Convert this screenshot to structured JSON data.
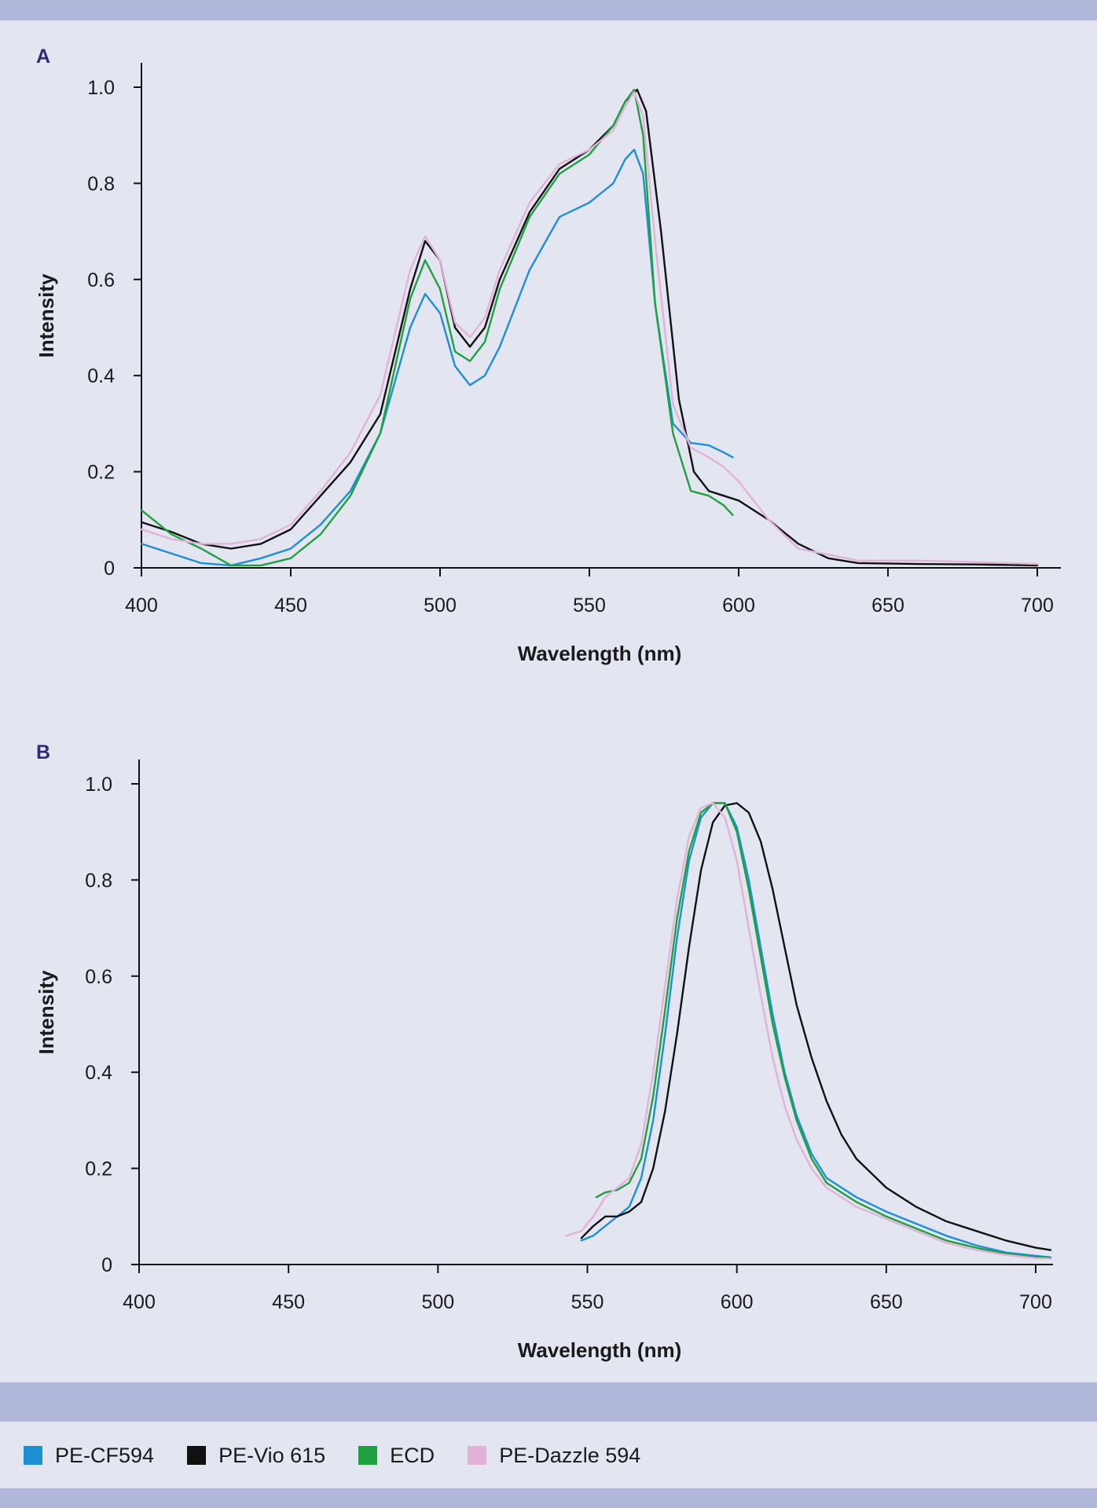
{
  "legend": [
    {
      "label": "PE-CF594",
      "color": "#1d8fd4"
    },
    {
      "label": "PE-Vio 615",
      "color": "#111111"
    },
    {
      "label": "ECD",
      "color": "#1ea13e"
    },
    {
      "label": "PE-Dazzle 594",
      "color": "#e2b3d8"
    }
  ],
  "chart_data": [
    {
      "panel_label": "A",
      "type": "line",
      "title": "",
      "xlabel": "Wavelength (nm)",
      "ylabel": "Intensity",
      "xlim": [
        400,
        705
      ],
      "ylim": [
        0,
        1.05
      ],
      "xticks": [
        400,
        450,
        500,
        550,
        600,
        650,
        700
      ],
      "yticks": [
        0,
        0.2,
        0.4,
        0.6,
        0.8,
        1.0
      ],
      "ytick_labels": [
        "0",
        "0.2",
        "0.4",
        "0.6",
        "0.8",
        "1.0"
      ],
      "grid": false,
      "series": [
        {
          "name": "PE-CF594",
          "color": "#1d8fd4",
          "x": [
            400,
            410,
            420,
            430,
            440,
            450,
            460,
            470,
            480,
            490,
            495,
            500,
            505,
            510,
            515,
            520,
            530,
            540,
            550,
            558,
            562,
            565,
            568,
            572,
            578,
            584,
            590,
            595,
            598
          ],
          "y": [
            0.05,
            0.03,
            0.01,
            0.005,
            0.02,
            0.04,
            0.09,
            0.16,
            0.28,
            0.5,
            0.57,
            0.53,
            0.42,
            0.38,
            0.4,
            0.46,
            0.62,
            0.73,
            0.76,
            0.8,
            0.85,
            0.87,
            0.82,
            0.55,
            0.3,
            0.26,
            0.255,
            0.24,
            0.23
          ]
        },
        {
          "name": "PE-Vio 615",
          "color": "#111111",
          "x": [
            400,
            410,
            420,
            430,
            440,
            450,
            460,
            470,
            480,
            490,
            495,
            500,
            505,
            510,
            515,
            520,
            530,
            540,
            550,
            558,
            562,
            566,
            569,
            574,
            580,
            585,
            590,
            595,
            600,
            610,
            620,
            630,
            640,
            660,
            680,
            700
          ],
          "y": [
            0.095,
            0.075,
            0.05,
            0.04,
            0.05,
            0.08,
            0.15,
            0.22,
            0.32,
            0.58,
            0.68,
            0.64,
            0.5,
            0.46,
            0.5,
            0.6,
            0.74,
            0.83,
            0.87,
            0.92,
            0.97,
            0.995,
            0.95,
            0.7,
            0.35,
            0.2,
            0.16,
            0.15,
            0.14,
            0.1,
            0.05,
            0.02,
            0.01,
            0.008,
            0.007,
            0.005
          ]
        },
        {
          "name": "ECD",
          "color": "#1ea13e",
          "x": [
            400,
            410,
            420,
            430,
            440,
            450,
            460,
            470,
            480,
            490,
            495,
            500,
            505,
            510,
            515,
            520,
            530,
            540,
            550,
            558,
            562,
            565,
            568,
            572,
            578,
            584,
            590,
            595,
            598
          ],
          "y": [
            0.12,
            0.07,
            0.04,
            0.005,
            0.005,
            0.02,
            0.07,
            0.15,
            0.28,
            0.56,
            0.64,
            0.58,
            0.45,
            0.43,
            0.47,
            0.58,
            0.73,
            0.82,
            0.86,
            0.92,
            0.97,
            0.995,
            0.9,
            0.55,
            0.28,
            0.16,
            0.15,
            0.13,
            0.11
          ]
        },
        {
          "name": "PE-Dazzle 594",
          "color": "#e2b3d8",
          "x": [
            400,
            410,
            420,
            430,
            440,
            450,
            460,
            470,
            480,
            490,
            495,
            500,
            505,
            510,
            515,
            520,
            530,
            540,
            550,
            558,
            562,
            565,
            568,
            572,
            578,
            584,
            590,
            595,
            600,
            610,
            620,
            640,
            660,
            680,
            700
          ],
          "y": [
            0.08,
            0.06,
            0.05,
            0.05,
            0.06,
            0.09,
            0.16,
            0.24,
            0.36,
            0.62,
            0.69,
            0.64,
            0.51,
            0.48,
            0.52,
            0.62,
            0.76,
            0.84,
            0.87,
            0.91,
            0.96,
            0.99,
            0.94,
            0.68,
            0.34,
            0.25,
            0.23,
            0.21,
            0.18,
            0.1,
            0.04,
            0.015,
            0.015,
            0.012,
            0.008
          ]
        }
      ]
    },
    {
      "panel_label": "B",
      "type": "line",
      "title": "",
      "xlabel": "Wavelength (nm)",
      "ylabel": "Intensity",
      "xlim": [
        400,
        705
      ],
      "ylim": [
        0,
        1.05
      ],
      "xticks": [
        400,
        450,
        500,
        550,
        600,
        650,
        700
      ],
      "yticks": [
        0,
        0.2,
        0.4,
        0.6,
        0.8,
        1.0
      ],
      "ytick_labels": [
        "0",
        "0.2",
        "0.4",
        "0.6",
        "0.8",
        "1.0"
      ],
      "grid": false,
      "series": [
        {
          "name": "PE-CF594",
          "color": "#1d8fd4",
          "x": [
            548,
            552,
            556,
            560,
            564,
            568,
            572,
            576,
            580,
            584,
            588,
            592,
            596,
            600,
            604,
            608,
            612,
            616,
            620,
            625,
            630,
            635,
            640,
            650,
            660,
            670,
            680,
            690,
            700,
            705
          ],
          "y": [
            0.05,
            0.06,
            0.08,
            0.1,
            0.12,
            0.18,
            0.3,
            0.48,
            0.68,
            0.84,
            0.93,
            0.96,
            0.96,
            0.91,
            0.8,
            0.66,
            0.52,
            0.4,
            0.31,
            0.23,
            0.18,
            0.16,
            0.14,
            0.11,
            0.085,
            0.06,
            0.04,
            0.025,
            0.018,
            0.015
          ]
        },
        {
          "name": "PE-Vio 615",
          "color": "#111111",
          "x": [
            548,
            552,
            556,
            560,
            564,
            568,
            572,
            576,
            580,
            584,
            588,
            592,
            596,
            600,
            604,
            608,
            612,
            616,
            620,
            625,
            630,
            635,
            640,
            650,
            660,
            670,
            680,
            690,
            700,
            705
          ],
          "y": [
            0.055,
            0.08,
            0.1,
            0.1,
            0.11,
            0.13,
            0.2,
            0.32,
            0.48,
            0.66,
            0.82,
            0.92,
            0.955,
            0.96,
            0.94,
            0.88,
            0.78,
            0.66,
            0.54,
            0.43,
            0.34,
            0.27,
            0.22,
            0.16,
            0.12,
            0.09,
            0.07,
            0.05,
            0.035,
            0.03
          ]
        },
        {
          "name": "ECD",
          "color": "#1ea13e",
          "x": [
            553,
            556,
            560,
            564,
            568,
            572,
            576,
            580,
            584,
            588,
            592,
            596,
            600,
            604,
            608,
            612,
            616,
            620,
            625,
            630,
            635,
            640,
            650,
            660,
            670,
            680,
            690,
            700,
            705
          ],
          "y": [
            0.14,
            0.15,
            0.155,
            0.17,
            0.22,
            0.35,
            0.53,
            0.72,
            0.86,
            0.94,
            0.96,
            0.96,
            0.9,
            0.78,
            0.64,
            0.5,
            0.39,
            0.3,
            0.22,
            0.17,
            0.15,
            0.13,
            0.1,
            0.075,
            0.05,
            0.035,
            0.022,
            0.015,
            0.013
          ]
        },
        {
          "name": "PE-Dazzle 594",
          "color": "#e2b3d8",
          "x": [
            543,
            548,
            552,
            556,
            560,
            564,
            568,
            572,
            576,
            580,
            584,
            588,
            592,
            596,
            600,
            604,
            608,
            612,
            616,
            620,
            625,
            630,
            635,
            640,
            650,
            660,
            670,
            680,
            690,
            700,
            705
          ],
          "y": [
            0.06,
            0.07,
            0.1,
            0.14,
            0.16,
            0.18,
            0.25,
            0.4,
            0.58,
            0.76,
            0.89,
            0.95,
            0.96,
            0.93,
            0.84,
            0.7,
            0.56,
            0.43,
            0.33,
            0.26,
            0.2,
            0.16,
            0.14,
            0.12,
            0.095,
            0.07,
            0.045,
            0.03,
            0.02,
            0.013,
            0.012
          ]
        }
      ]
    }
  ]
}
